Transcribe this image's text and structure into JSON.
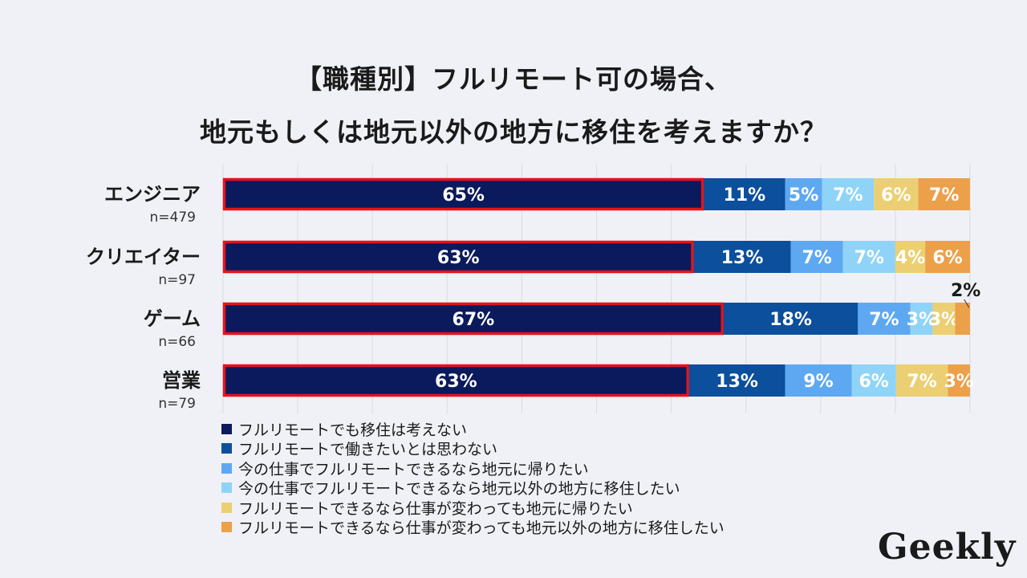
{
  "title_line1": "【職種別】フルリモート可の場合、",
  "title_line2": "地元もしくは地元以外の地方に移住を考えますか？",
  "logo": "Geekly",
  "chart_data": {
    "type": "bar",
    "orientation": "horizontal",
    "stacked": true,
    "normalized": true,
    "grid": true,
    "legend_position": "bottom-left",
    "categories": [
      {
        "label": "エンジニア",
        "n": "n=479"
      },
      {
        "label": "クリエイター",
        "n": "n=97"
      },
      {
        "label": "ゲーム",
        "n": "n=66"
      },
      {
        "label": "営業",
        "n": "n=79"
      }
    ],
    "series": [
      {
        "name": "フルリモートでも移住は考えない",
        "color": "#0a1a5c",
        "label_color": "#ffffff",
        "values": [
          65,
          63,
          67,
          63
        ],
        "labels": [
          "65%",
          "63%",
          "67%",
          "63%"
        ]
      },
      {
        "name": "フルリモートで働きたいとは思わない",
        "color": "#0c4f9c",
        "label_color": "#ffffff",
        "values": [
          11,
          13,
          18,
          13
        ],
        "labels": [
          "11%",
          "13%",
          "18%",
          "13%"
        ]
      },
      {
        "name": "今の仕事でフルリモートできるなら地元に帰りたい",
        "color": "#5ea8f2",
        "label_color": "#ffffff",
        "values": [
          5,
          7,
          7,
          9
        ],
        "labels": [
          "5%",
          "7%",
          "7%",
          "9%"
        ]
      },
      {
        "name": "今の仕事でフルリモートできるなら地元以外の地方に移住したい",
        "color": "#8fd4f8",
        "label_color": "#ffffff",
        "values": [
          7,
          7,
          3,
          6
        ],
        "labels": [
          "7%",
          "7%",
          "3%",
          "6%"
        ]
      },
      {
        "name": "フルリモートできるなら仕事が変わっても地元に帰りたい",
        "color": "#ebcf72",
        "label_color": "#ffffff",
        "values": [
          6,
          4,
          3,
          7
        ],
        "labels": [
          "6%",
          "4%",
          "3%",
          "7%"
        ]
      },
      {
        "name": "フルリモートできるなら仕事が変わっても地元以外の地方に移住したい",
        "color": "#eca04a",
        "label_color": "#ffffff",
        "values": [
          7,
          6,
          2,
          3
        ],
        "labels": [
          "7%",
          "6%",
          "2%",
          "3%"
        ]
      }
    ],
    "highlight_series": "フルリモートでも移住は考えない",
    "highlight_color": "#e3141b"
  }
}
